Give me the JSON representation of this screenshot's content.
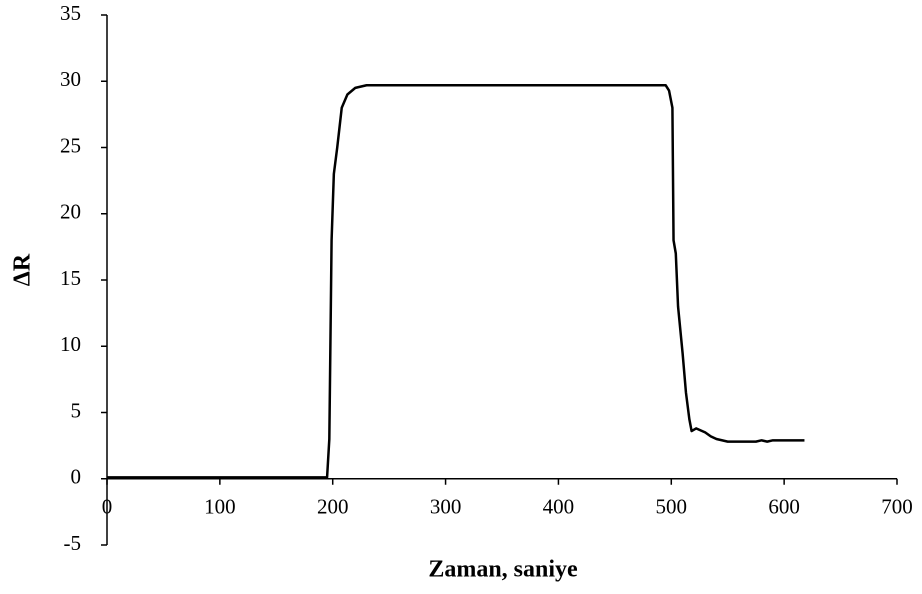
{
  "chart_data": {
    "type": "line",
    "xlabel": "Zaman,  saniye",
    "ylabel": "ΔR",
    "series": [
      {
        "name": "ΔR",
        "color": "#000000",
        "x": [
          0,
          100,
          195,
          197,
          199,
          201,
          204,
          208,
          213,
          220,
          230,
          250,
          330,
          495,
          498,
          501,
          502,
          504,
          506,
          510,
          513,
          516,
          518,
          522,
          530,
          535,
          540,
          550,
          575,
          580,
          585,
          590,
          618
        ],
        "values": [
          0.1,
          0.1,
          0.1,
          3,
          18,
          23,
          25,
          28,
          29,
          29.5,
          29.7,
          29.7,
          29.7,
          29.7,
          29.3,
          28,
          18,
          17,
          13,
          9.5,
          6.5,
          4.5,
          3.6,
          3.8,
          3.5,
          3.2,
          3,
          2.8,
          2.8,
          2.9,
          2.8,
          2.9,
          2.9
        ]
      }
    ],
    "xlim": [
      0,
      700
    ],
    "xticks": [
      0,
      100,
      200,
      300,
      400,
      500,
      600,
      700
    ],
    "ylim": [
      -5,
      35
    ],
    "yticks": [
      -5,
      0,
      5,
      10,
      15,
      20,
      25,
      30,
      35
    ]
  }
}
